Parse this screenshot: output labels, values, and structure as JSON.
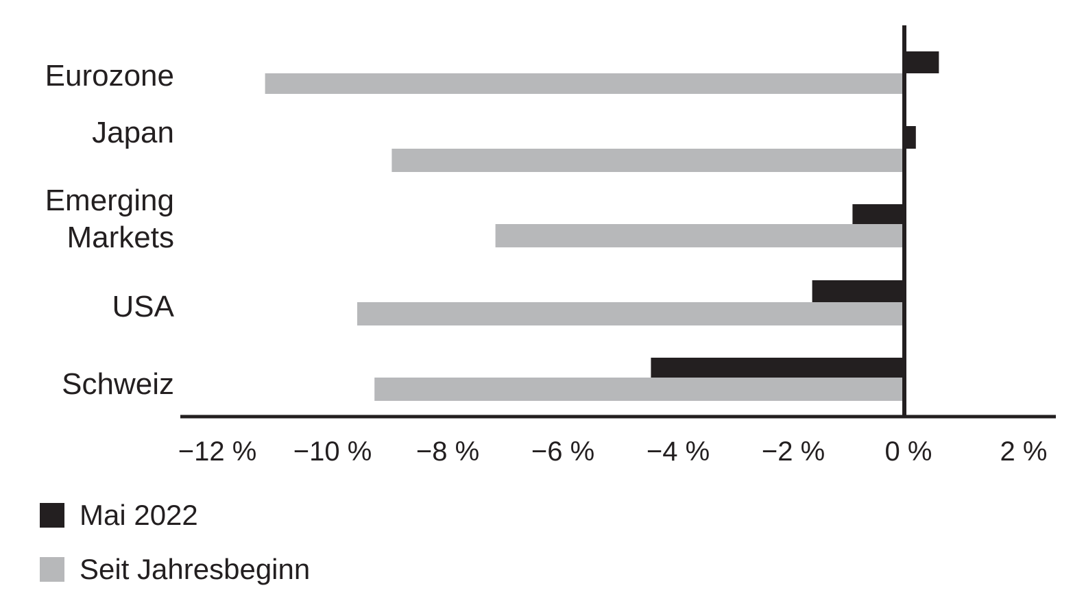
{
  "chart_data": {
    "type": "bar",
    "orientation": "horizontal",
    "categories": [
      "Eurozone",
      "Japan",
      "Emerging Markets",
      "USA",
      "Schweiz"
    ],
    "category_lines": [
      [
        "Eurozone"
      ],
      [
        "Japan"
      ],
      [
        "Emerging",
        "Markets"
      ],
      [
        "USA"
      ],
      [
        "Schweiz"
      ]
    ],
    "series": [
      {
        "name": "Mai 2022",
        "color": "#231f20",
        "values": [
          0.6,
          0.2,
          -0.9,
          -1.6,
          -4.4
        ]
      },
      {
        "name": "Seit Jahresbeginn",
        "color": "#b7b8ba",
        "values": [
          -11.1,
          -8.9,
          -7.1,
          -9.5,
          -9.2
        ]
      }
    ],
    "xlim": [
      -12.7,
      2.6
    ],
    "xticks": [
      -12,
      -10,
      -8,
      -6,
      -4,
      -2,
      0,
      2
    ],
    "xtick_labels": [
      "−12 %",
      "−10 %",
      "−8 %",
      "−6 %",
      "−4 %",
      "−2 %",
      "0 %",
      "2 %"
    ],
    "grid": false,
    "legend_position": "bottom-left"
  }
}
